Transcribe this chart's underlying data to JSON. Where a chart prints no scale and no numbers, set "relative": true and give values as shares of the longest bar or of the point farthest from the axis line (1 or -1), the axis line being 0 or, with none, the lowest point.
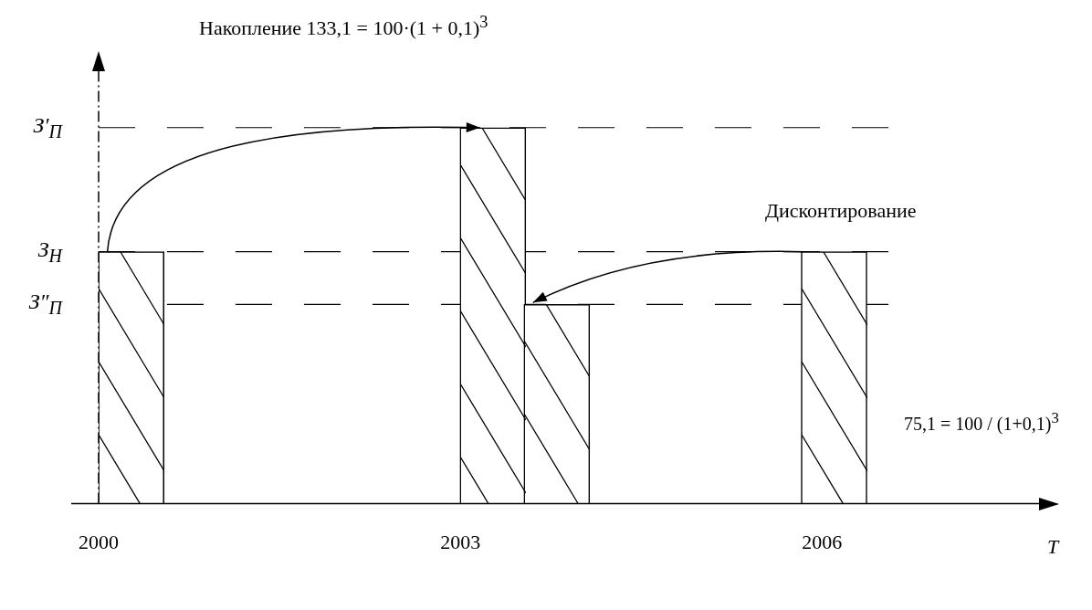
{
  "chart_data": {
    "type": "bar",
    "relative": true,
    "xlabel": "T",
    "x": [
      2000.27,
      2003.27,
      2003.8,
      2006.1
    ],
    "values": [
      0.67,
      1,
      0.53,
      0.67
    ],
    "color": "#ffffff",
    "xlim": [
      2000,
      2007.8
    ],
    "xticks": [
      2000,
      2003,
      2006
    ],
    "ref_lines": [
      {
        "axis": "y",
        "value": 1,
        "label": "З′$_{П}$",
        "line_style": "dashed"
      },
      {
        "axis": "y",
        "value": 0.67,
        "label": "З$_{Н}$",
        "line_style": "dashed"
      },
      {
        "axis": "y",
        "value": 0.53,
        "label": "З″$_{П}$",
        "line_style": "dashed"
      }
    ],
    "annotations": [
      "Накопление 133,1 = 100·(1 + 0,1)$^{3}$",
      "Дисконтирование",
      "75,1 = 100 / (1+0,1)$^{3}$"
    ]
  }
}
